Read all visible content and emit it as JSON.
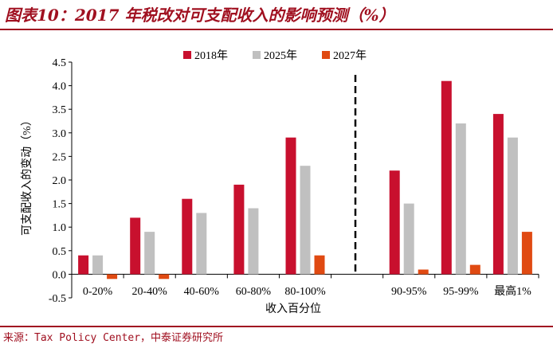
{
  "title": "图表10：2017 年税改对可支配收入的影响预测（%）",
  "source": "来源：Tax Policy Center，中泰证券研究所",
  "colors": {
    "brand": "#a01020",
    "s2018": "#c8102e",
    "s2025": "#c0c0c0",
    "s2027": "#e04a12"
  },
  "chart_data": {
    "type": "bar",
    "ylabel": "可支配收入的变动（%）",
    "xlabel": "收入百分位",
    "ylim": [
      -0.5,
      4.5
    ],
    "yticks": [
      "4.5",
      "4.0",
      "3.5",
      "3.0",
      "2.5",
      "2.0",
      "1.5",
      "1.0",
      "0.5",
      "0.0",
      "-0.5"
    ],
    "ytick_values": [
      4.5,
      4.0,
      3.5,
      3.0,
      2.5,
      2.0,
      1.5,
      1.0,
      0.5,
      0.0,
      -0.5
    ],
    "categories": [
      "0-20%",
      "20-40%",
      "40-60%",
      "60-80%",
      "80-100%",
      "90-95%",
      "95-99%",
      "最高1%"
    ],
    "series": [
      {
        "name": "2018年",
        "values": [
          0.4,
          1.2,
          1.6,
          1.9,
          2.9,
          2.2,
          4.1,
          3.4
        ]
      },
      {
        "name": "2025年",
        "values": [
          0.4,
          0.9,
          1.3,
          1.4,
          2.3,
          1.5,
          3.2,
          2.9
        ]
      },
      {
        "name": "2027年",
        "values": [
          -0.1,
          -0.1,
          0.0,
          0.0,
          0.4,
          0.1,
          0.2,
          0.9
        ]
      }
    ],
    "legend": "top"
  }
}
